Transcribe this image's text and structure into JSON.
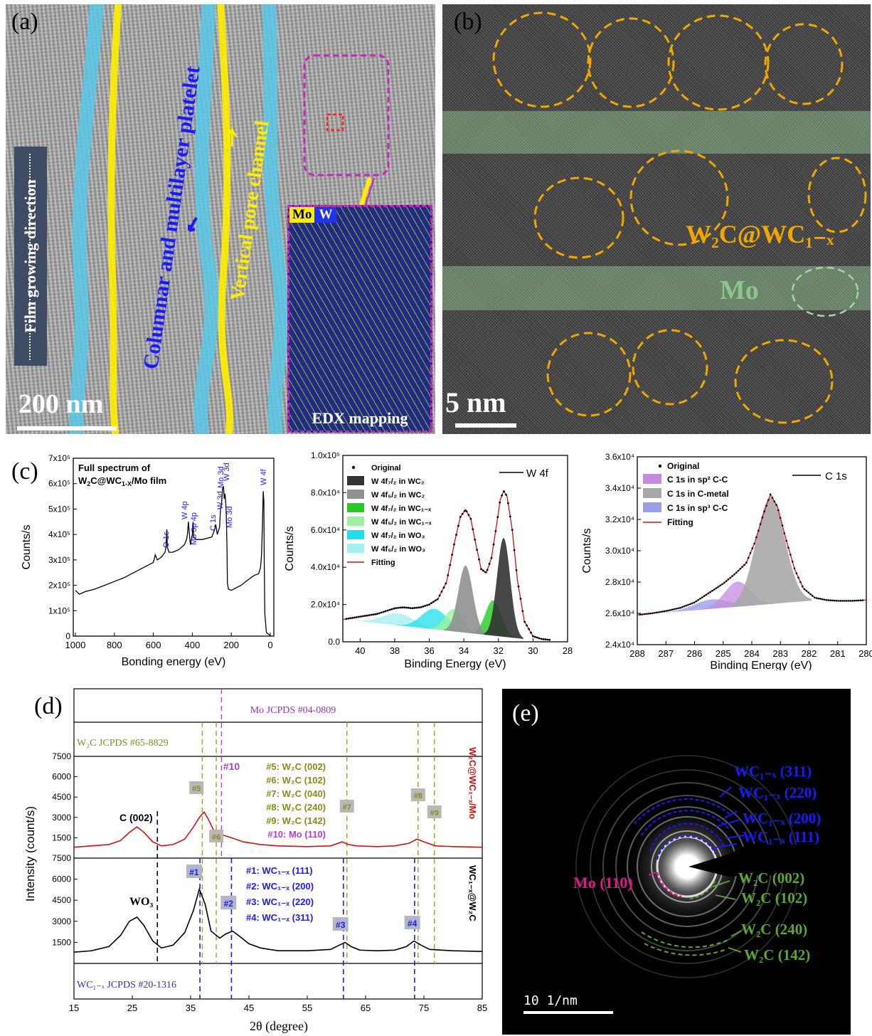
{
  "panel_a": {
    "label": "(a)",
    "growth_label": "Film growing direction",
    "columnar_label": "Columnar and multilayer platelet",
    "pore_label": "Vertical pore channel",
    "scalebar": "200 nm",
    "edx_mo": "Mo",
    "edx_w": "W",
    "edx_title": "EDX mapping"
  },
  "panel_b": {
    "label": "(b)",
    "w2c_label": "W₂C@WC₁₋ₓ",
    "mo_label": "Mo",
    "scalebar": "5 nm"
  },
  "panel_c_label": "(c)",
  "panel_d_label": "(d)",
  "panel_e": {
    "label": "(e)",
    "scalebar": "10 1/nm",
    "rings_wc": [
      "WC₁₋ₓ (311)",
      "WC₁₋ₓ (220)",
      "WC₁₋ₓ (200)",
      "WC₁₋ₓ (111)"
    ],
    "ring_mo": "Mo (110)",
    "rings_w2c": [
      "W₂C (002)",
      "W₂C (102)",
      "W₂C (240)",
      "W₂C (142)"
    ]
  },
  "colors": {
    "blue_overlay": "#5bc8e8",
    "yellow_overlay": "#ffee00",
    "orange_circle": "#f0a800",
    "green_band": "#9fd89f",
    "wc_blue": "#1a1aff",
    "w2c_green": "#5aa832",
    "mo_magenta": "#e0188c",
    "fit_red": "#d01010"
  },
  "chart_data": [
    {
      "type": "line",
      "title": "Full spectrum of W₂C@WC₁₋ₓ/Mo film",
      "xlabel": "Bonding energy (eV)",
      "ylabel": "Counts/s",
      "xlim": [
        1000,
        0
      ],
      "ylim": [
        0,
        700000
      ],
      "xticks": [
        "1000",
        "800",
        "600",
        "400",
        "200",
        "0"
      ],
      "yticks": [
        "0",
        "1x10⁵",
        "2x10⁵",
        "3x10⁵",
        "4x10⁵",
        "5x10⁵",
        "6x10⁵",
        "7x10⁵"
      ],
      "x": [
        1000,
        980,
        950,
        900,
        850,
        800,
        750,
        700,
        650,
        600,
        590,
        580,
        560,
        540,
        535,
        531,
        528,
        520,
        500,
        470,
        440,
        430,
        425,
        420,
        415,
        410,
        400,
        396,
        393,
        380,
        350,
        300,
        285,
        280,
        276,
        272,
        260,
        258,
        255,
        250,
        245,
        240,
        236,
        232,
        228,
        226,
        224,
        222,
        220,
        215,
        200,
        150,
        100,
        80,
        60,
        50,
        45,
        40,
        36,
        33,
        31,
        28,
        20,
        10,
        5,
        0
      ],
      "y": [
        180000,
        165000,
        175000,
        185000,
        200000,
        215000,
        230000,
        250000,
        270000,
        290000,
        320000,
        300000,
        310000,
        330000,
        350000,
        420000,
        350000,
        330000,
        330000,
        340000,
        360000,
        380000,
        400000,
        450000,
        400000,
        360000,
        400000,
        450000,
        390000,
        380000,
        380000,
        390000,
        420000,
        440000,
        420000,
        400000,
        430000,
        460000,
        500000,
        520000,
        580000,
        590000,
        540000,
        560000,
        520000,
        480000,
        420000,
        340000,
        210000,
        185000,
        180000,
        200000,
        230000,
        240000,
        245000,
        270000,
        320000,
        440000,
        570000,
        530000,
        300000,
        90000,
        15000,
        8000,
        5000,
        4000
      ],
      "annotations": [
        "O 1s",
        "W 4p",
        "Mo 3p 4p",
        "C 1s",
        "W 3d",
        "Mo 3d",
        "W 3d",
        "Mo 3d",
        "W 4f"
      ]
    },
    {
      "type": "line",
      "xlabel": "Binding Energy (eV)",
      "ylabel": "Counts/s",
      "xlim": [
        41,
        28
      ],
      "ylim": [
        0,
        100000
      ],
      "xticks": [
        "40",
        "38",
        "36",
        "34",
        "32",
        "30",
        "28"
      ],
      "yticks": [
        "0.0",
        "2.0x10⁴",
        "4.0x10⁴",
        "6.0x10⁴",
        "8.0x10⁴",
        "1.0x10⁵"
      ],
      "legend_title": "W 4f",
      "legend": [
        "Original",
        "W 4f₇/₂ in WC₂",
        "W 4f₅/₂ in WC₂",
        "W 4f₇/₂ in WC₁₋ₓ",
        "W 4f₅/₂ in WC₁₋ₓ",
        "W 4f₇/₂ in WO₃",
        "W 4f₅/₂ in WO₃",
        "Fitting"
      ],
      "series": [
        {
          "x": [
            41,
            40,
            39,
            38.5,
            38,
            37.5,
            37,
            36.5,
            36,
            35.5,
            35,
            34.5,
            34.2,
            33.9,
            33.6,
            33.3,
            33,
            32.7,
            32.4,
            32.1,
            31.9,
            31.7,
            31.5,
            31.2,
            30.9,
            30.5,
            30,
            29.5,
            29
          ],
          "y": [
            12000,
            13500,
            15000,
            16500,
            18000,
            18500,
            18000,
            18500,
            20000,
            23000,
            32000,
            55000,
            67000,
            71000,
            66000,
            52000,
            39000,
            37000,
            45000,
            63000,
            76000,
            81000,
            78000,
            60000,
            33000,
            11000,
            3000,
            1500,
            1000
          ]
        }
      ]
    },
    {
      "type": "line",
      "xlabel": "Binding Energy (eV)",
      "ylabel": "Counts/s",
      "xlim": [
        288,
        280
      ],
      "ylim": [
        24000,
        36000
      ],
      "xticks": [
        "288",
        "287",
        "286",
        "285",
        "284",
        "283",
        "282",
        "281",
        "280"
      ],
      "yticks": [
        "2.4x10⁴",
        "2.6x10⁴",
        "2.8x10⁴",
        "3.0x10⁴",
        "3.2x10⁴",
        "3.4x10⁴",
        "3.6x10⁴"
      ],
      "legend_title": "C 1s",
      "legend": [
        "Original",
        "C 1s in sp² C-C",
        "C 1s in C-metal",
        "C 1s in sp³ C-C",
        "Fitting"
      ],
      "series": [
        {
          "x": [
            288,
            287.5,
            287,
            286.5,
            286,
            285.5,
            285,
            284.6,
            284.2,
            283.9,
            283.6,
            283.35,
            283.1,
            282.8,
            282.5,
            282.2,
            281.8,
            281.4,
            281,
            280.5,
            280
          ],
          "y": [
            25900,
            26000,
            26150,
            26350,
            26700,
            27300,
            27900,
            28500,
            29200,
            30500,
            32300,
            33600,
            32800,
            30700,
            28800,
            27600,
            27000,
            26850,
            26800,
            26800,
            26850
          ]
        }
      ]
    },
    {
      "type": "line",
      "xlabel": "2θ (degree)",
      "ylabel": "Intensity (count/s)",
      "xlim": [
        15,
        85
      ],
      "ylim": [
        0,
        7500
      ],
      "xticks": [
        "15",
        "25",
        "35",
        "45",
        "55",
        "65",
        "75",
        "85"
      ],
      "yticks": [
        "1500",
        "3000",
        "4500",
        "6000",
        "7500"
      ],
      "references": [
        "Mo JCPDS #04-0809",
        "W₂C JCPDS #65-8829",
        "WC₁₋ₓ JCPDS #20-1316"
      ],
      "peak_labels_w2c": [
        "#5: W₂C (002)",
        "#6: W₂C (102)",
        "#7: W₂C (040)",
        "#8: W₂C (240)",
        "#9: W₂C (142)",
        "#10: Mo (110)"
      ],
      "peak_labels_wc": [
        "#1: WC₁₋ₓ (111)",
        "#2: WC₁₋ₓ (200)",
        "#3: WC₁₋ₓ (220)",
        "#4: WC₁₋ₓ (311)"
      ],
      "markers_top": [
        "#5",
        "#6",
        "#7",
        "#8",
        "#9",
        "#10"
      ],
      "markers_bottom": [
        "#1",
        "#2",
        "#3",
        "#4"
      ],
      "annotations": [
        "C (002)",
        "WO₃"
      ],
      "series": [
        {
          "name": "W₂C@WC₁₋ₓ/Mo",
          "x": [
            15,
            18,
            21,
            23,
            24.5,
            25.8,
            27,
            28.5,
            30,
            32,
            34,
            35.5,
            36.5,
            37.3,
            38,
            39,
            40.5,
            42,
            44,
            47,
            50,
            55,
            59,
            61,
            62,
            63.5,
            67,
            70,
            72.5,
            73.8,
            75,
            77,
            80,
            85
          ],
          "y": [
            800,
            900,
            1000,
            1300,
            1900,
            2300,
            1900,
            1200,
            900,
            1000,
            1400,
            2300,
            3000,
            3400,
            2900,
            2000,
            1700,
            1500,
            1200,
            1000,
            900,
            850,
            900,
            1200,
            1000,
            900,
            850,
            900,
            1100,
            1400,
            1200,
            900,
            850,
            800
          ]
        },
        {
          "name": "WC₁₋ₓ@W₂C",
          "x": [
            15,
            18,
            21,
            23,
            24.5,
            25.8,
            27,
            28.5,
            30,
            32,
            34,
            35.5,
            36.5,
            37.5,
            38.5,
            40,
            41,
            42.2,
            43.5,
            45,
            47,
            50,
            55,
            59,
            60.5,
            61.5,
            62.5,
            64,
            67,
            70,
            72,
            73.3,
            74.5,
            76,
            80,
            85
          ],
          "y": [
            800,
            900,
            1200,
            2000,
            3000,
            3300,
            2700,
            1600,
            1100,
            1300,
            2200,
            3800,
            5300,
            4200,
            2300,
            1800,
            2100,
            2300,
            1900,
            1400,
            1100,
            900,
            900,
            1000,
            1300,
            1500,
            1200,
            950,
            900,
            950,
            1200,
            1600,
            1300,
            1000,
            900,
            850
          ]
        }
      ]
    }
  ]
}
